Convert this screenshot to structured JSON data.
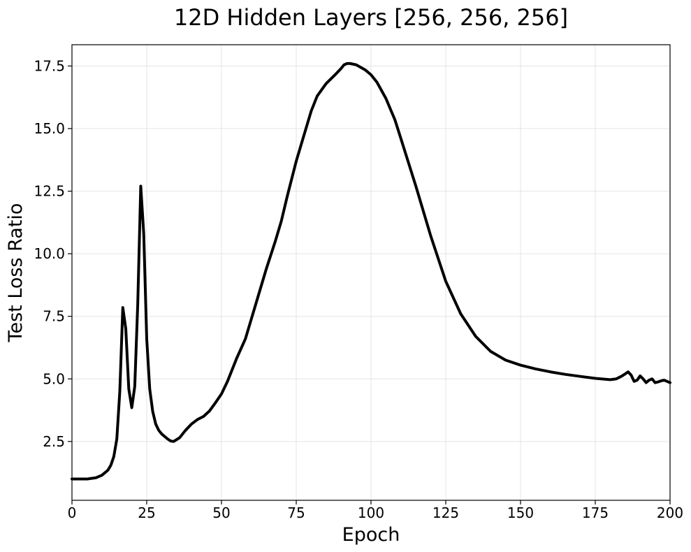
{
  "chart_data": {
    "type": "line",
    "title": "12D Hidden Layers [256, 256, 256]",
    "xlabel": "Epoch",
    "ylabel": "Test Loss Ratio",
    "xlim": [
      0,
      200
    ],
    "ylim": [
      0.15,
      18.35
    ],
    "xticks": [
      0,
      25,
      50,
      75,
      100,
      125,
      150,
      175,
      200
    ],
    "xtick_labels": [
      "0",
      "25",
      "50",
      "75",
      "100",
      "125",
      "150",
      "175",
      "200"
    ],
    "yticks": [
      2.5,
      5.0,
      7.5,
      10.0,
      12.5,
      15.0,
      17.5
    ],
    "ytick_labels": [
      "2.5",
      "5.0",
      "7.5",
      "10.0",
      "12.5",
      "15.0",
      "17.5"
    ],
    "grid": true,
    "series": [
      {
        "color": "#000000",
        "x": [
          0,
          5,
          8,
          10,
          12,
          13,
          14,
          15,
          16,
          17,
          18,
          19,
          20,
          21,
          22,
          23,
          24,
          25,
          26,
          27,
          28,
          29,
          30,
          32,
          33,
          34,
          36,
          38,
          40,
          42,
          44,
          46,
          48,
          50,
          52,
          55,
          58,
          60,
          62,
          65,
          68,
          70,
          72,
          75,
          78,
          80,
          82,
          85,
          88,
          90,
          91,
          92,
          93,
          95,
          98,
          100,
          102,
          105,
          108,
          110,
          115,
          120,
          125,
          130,
          135,
          140,
          145,
          150,
          155,
          160,
          165,
          170,
          175,
          180,
          182,
          184,
          186,
          187,
          188,
          189,
          190,
          191,
          192,
          193,
          194,
          195,
          196,
          197,
          198,
          199,
          200
        ],
        "values": [
          1.0,
          1.0,
          1.05,
          1.15,
          1.35,
          1.55,
          1.9,
          2.6,
          4.5,
          7.85,
          7.0,
          4.6,
          3.85,
          4.7,
          8.0,
          12.7,
          10.8,
          6.6,
          4.6,
          3.7,
          3.2,
          2.95,
          2.8,
          2.6,
          2.52,
          2.5,
          2.65,
          2.95,
          3.2,
          3.38,
          3.5,
          3.72,
          4.05,
          4.4,
          4.9,
          5.8,
          6.6,
          7.4,
          8.2,
          9.4,
          10.5,
          11.3,
          12.3,
          13.7,
          14.9,
          15.7,
          16.3,
          16.8,
          17.15,
          17.4,
          17.55,
          17.6,
          17.6,
          17.55,
          17.35,
          17.15,
          16.85,
          16.2,
          15.35,
          14.6,
          12.7,
          10.7,
          8.9,
          7.6,
          6.7,
          6.1,
          5.75,
          5.55,
          5.4,
          5.28,
          5.18,
          5.1,
          5.02,
          4.97,
          5.0,
          5.12,
          5.28,
          5.15,
          4.9,
          4.95,
          5.12,
          5.0,
          4.85,
          4.95,
          5.0,
          4.85,
          4.88,
          4.92,
          4.95,
          4.9,
          4.85
        ]
      }
    ]
  }
}
